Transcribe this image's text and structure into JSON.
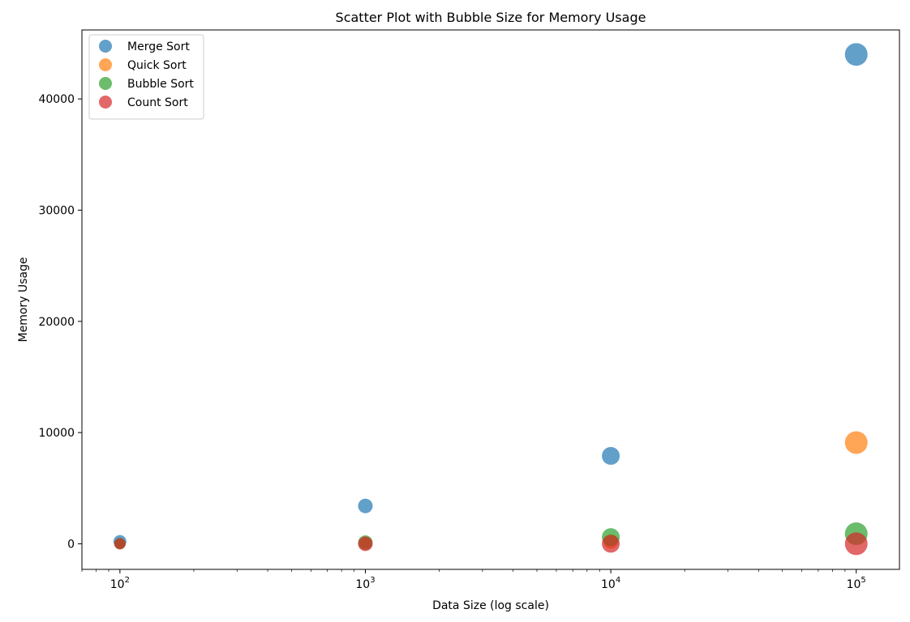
{
  "chart_data": {
    "type": "scatter",
    "title": "Scatter Plot with Bubble Size for Memory Usage",
    "xlabel": "Data Size (log scale)",
    "ylabel": "Memory Usage",
    "x_scale": "log",
    "xlim": [
      70,
      150000
    ],
    "ylim": [
      -2300,
      46200
    ],
    "x_ticks": [
      {
        "value": 100,
        "base": "10",
        "exp": "2"
      },
      {
        "value": 1000,
        "base": "10",
        "exp": "3"
      },
      {
        "value": 10000,
        "base": "10",
        "exp": "4"
      },
      {
        "value": 100000,
        "base": "10",
        "exp": "5"
      }
    ],
    "y_ticks": [
      {
        "value": 0,
        "label": "0"
      },
      {
        "value": 10000,
        "label": "10000"
      },
      {
        "value": 20000,
        "label": "20000"
      },
      {
        "value": 30000,
        "label": "30000"
      },
      {
        "value": 40000,
        "label": "40000"
      }
    ],
    "grid": false,
    "legend_position": "upper left",
    "series": [
      {
        "name": "Merge Sort",
        "color": "#1f77b4",
        "points": [
          {
            "x": 100,
            "y": 200,
            "size": 3
          },
          {
            "x": 1000,
            "y": 3400,
            "size": 4
          },
          {
            "x": 10000,
            "y": 7900,
            "size": 6
          },
          {
            "x": 100000,
            "y": 44000,
            "size": 9
          }
        ]
      },
      {
        "name": "Quick Sort",
        "color": "#ff7f0e",
        "points": [
          {
            "x": 100,
            "y": 10,
            "size": 1
          },
          {
            "x": 1000,
            "y": 40,
            "size": 2
          },
          {
            "x": 10000,
            "y": 200,
            "size": 4
          },
          {
            "x": 100000,
            "y": 9100,
            "size": 9
          }
        ]
      },
      {
        "name": "Bubble Sort",
        "color": "#2ca02c",
        "points": [
          {
            "x": 100,
            "y": 10,
            "size": 2
          },
          {
            "x": 1000,
            "y": 100,
            "size": 4
          },
          {
            "x": 10000,
            "y": 600,
            "size": 6
          },
          {
            "x": 100000,
            "y": 900,
            "size": 9
          }
        ]
      },
      {
        "name": "Count Sort",
        "color": "#d62728",
        "points": [
          {
            "x": 100,
            "y": 0,
            "size": 2
          },
          {
            "x": 1000,
            "y": 0,
            "size": 4
          },
          {
            "x": 10000,
            "y": 0,
            "size": 6
          },
          {
            "x": 100000,
            "y": 0,
            "size": 9
          }
        ]
      }
    ]
  }
}
